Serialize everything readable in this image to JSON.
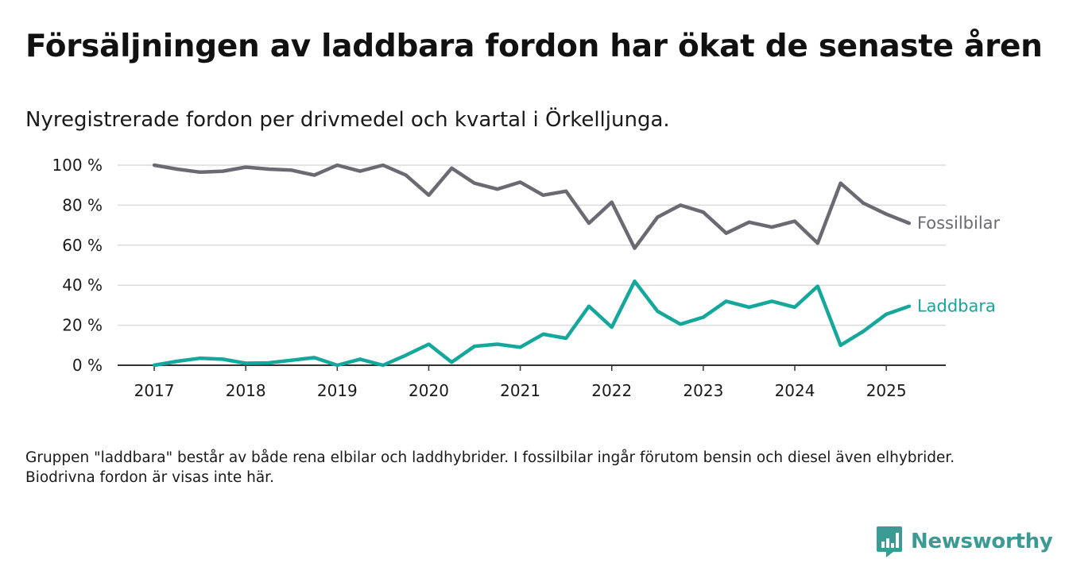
{
  "header": {
    "title": "Försäljningen av laddbara fordon har ökat de senaste åren",
    "subtitle": "Nyregistrerade fordon per drivmedel och kvartal i Örkelljunga."
  },
  "footnote": "Gruppen \"laddbara\" består av både rena elbilar och laddhybrider. I fossilbilar ingår förutom bensin och diesel även elhybrider. Biodrivna fordon är visas inte här.",
  "brand": {
    "name": "Newsworthy",
    "icon": "newsworthy-logo-icon",
    "color": "#3c9a94"
  },
  "chart_data": {
    "type": "line",
    "title": "Försäljningen av laddbara fordon har ökat de senaste åren",
    "subtitle": "Nyregistrerade fordon per drivmedel och kvartal i Örkelljunga.",
    "xlabel": "",
    "ylabel": "",
    "x_start": 2017.0,
    "x_step": 0.25,
    "xlim": [
      2016.6,
      2025.65
    ],
    "ylim": [
      0,
      100
    ],
    "x_ticks": [
      2017,
      2018,
      2019,
      2020,
      2021,
      2022,
      2023,
      2024,
      2025
    ],
    "x_tick_labels": [
      "2017",
      "2018",
      "2019",
      "2020",
      "2021",
      "2022",
      "2023",
      "2024",
      "2025"
    ],
    "y_ticks": [
      0,
      20,
      40,
      60,
      80,
      100
    ],
    "y_tick_labels": [
      "0 %",
      "20 %",
      "40 %",
      "60 %",
      "80 %",
      "100 %"
    ],
    "grid": "horizontal",
    "legend": "inline labels at line ends",
    "series": [
      {
        "name": "Fossilbilar",
        "color": "#6b6a73",
        "values": [
          100,
          98,
          96.5,
          97,
          99,
          98,
          97.5,
          95,
          100,
          97,
          100,
          95,
          85,
          98.5,
          91,
          88,
          91.5,
          85,
          87,
          71,
          81.5,
          58.5,
          74,
          80,
          76.5,
          66,
          71.5,
          69,
          72,
          61,
          91,
          81,
          75.5,
          71
        ]
      },
      {
        "name": "Laddbara",
        "color": "#14a89c",
        "values": [
          0,
          2,
          3.5,
          3,
          1,
          1.2,
          2.5,
          3.8,
          0,
          3,
          0,
          5,
          10.5,
          1.5,
          9.5,
          10.5,
          9,
          15.5,
          13.5,
          29.5,
          19,
          42,
          27,
          20.5,
          24,
          32,
          29,
          32,
          29,
          39.5,
          10,
          17,
          25.5,
          29.5
        ]
      }
    ]
  }
}
